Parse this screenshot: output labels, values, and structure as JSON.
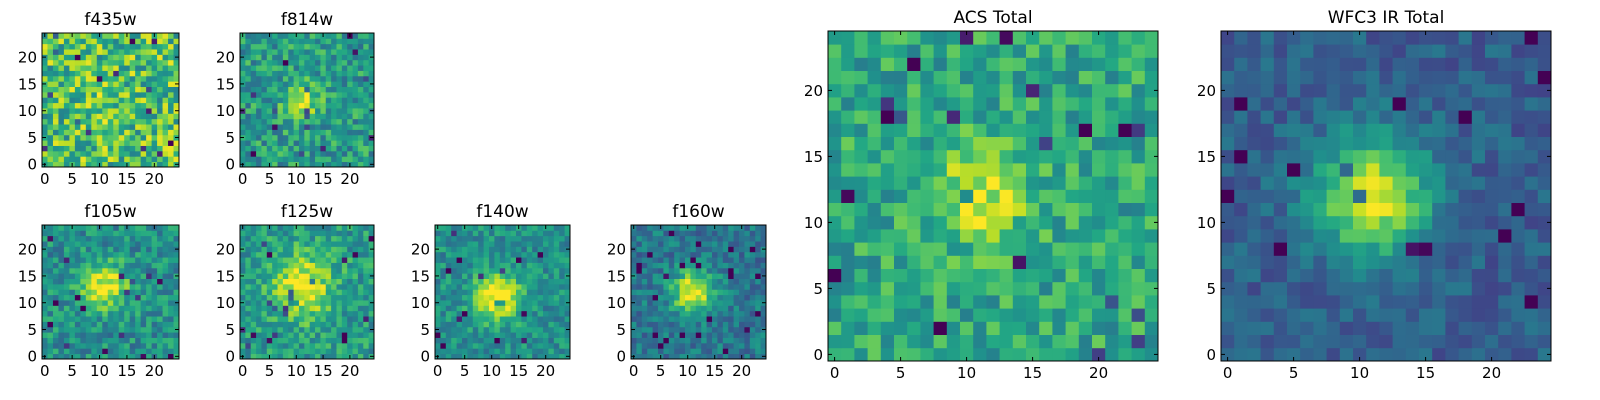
{
  "chart_data": [
    {
      "type": "heatmap",
      "title": "f435w",
      "xticks": [
        "0",
        "5",
        "10",
        "15",
        "20"
      ],
      "yticks": [
        "0",
        "5",
        "10",
        "15",
        "20"
      ],
      "grid_size": [
        25,
        25
      ],
      "xlim": [
        -0.5,
        24.5
      ],
      "ylim": [
        -0.5,
        24.5
      ],
      "colormap": "viridis",
      "peak": [
        10,
        12
      ],
      "peak_strength": 0.05,
      "peak_width": 3,
      "noise": 0.55,
      "base": 0.7,
      "grid": false
    },
    {
      "type": "heatmap",
      "title": "f814w",
      "xticks": [
        "0",
        "5",
        "10",
        "15",
        "20"
      ],
      "yticks": [
        "0",
        "5",
        "10",
        "15",
        "20"
      ],
      "grid_size": [
        25,
        25
      ],
      "xlim": [
        -0.5,
        24.5
      ],
      "ylim": [
        -0.5,
        24.5
      ],
      "colormap": "viridis",
      "peak": [
        11,
        12
      ],
      "peak_strength": 0.4,
      "peak_width": 2.2,
      "noise": 0.4,
      "base": 0.55,
      "grid": false
    },
    {
      "type": "heatmap",
      "title": "f105w",
      "xticks": [
        "0",
        "5",
        "10",
        "15",
        "20"
      ],
      "yticks": [
        "0",
        "5",
        "10",
        "15",
        "20"
      ],
      "grid_size": [
        25,
        25
      ],
      "xlim": [
        -0.5,
        24.5
      ],
      "ylim": [
        -0.5,
        24.5
      ],
      "colormap": "viridis",
      "peak": [
        11,
        13
      ],
      "peak_strength": 0.5,
      "peak_width": 3,
      "noise": 0.35,
      "base": 0.5,
      "grid": false
    },
    {
      "type": "heatmap",
      "title": "f125w",
      "xticks": [
        "0",
        "5",
        "10",
        "15",
        "20"
      ],
      "yticks": [
        "0",
        "5",
        "10",
        "15",
        "20"
      ],
      "grid_size": [
        25,
        25
      ],
      "xlim": [
        -0.5,
        24.5
      ],
      "ylim": [
        -0.5,
        24.5
      ],
      "colormap": "viridis",
      "peak": [
        11,
        13
      ],
      "peak_strength": 0.45,
      "peak_width": 4,
      "noise": 0.35,
      "base": 0.55,
      "grid": false
    },
    {
      "type": "heatmap",
      "title": "f140w",
      "xticks": [
        "0",
        "5",
        "10",
        "15",
        "20"
      ],
      "yticks": [
        "0",
        "5",
        "10",
        "15",
        "20"
      ],
      "grid_size": [
        25,
        25
      ],
      "xlim": [
        -0.5,
        24.5
      ],
      "ylim": [
        -0.5,
        24.5
      ],
      "colormap": "viridis",
      "peak": [
        11,
        11
      ],
      "peak_strength": 0.55,
      "peak_width": 3,
      "noise": 0.3,
      "base": 0.5,
      "grid": false
    },
    {
      "type": "heatmap",
      "title": "f160w",
      "xticks": [
        "0",
        "5",
        "10",
        "15",
        "20"
      ],
      "yticks": [
        "0",
        "5",
        "10",
        "15",
        "20"
      ],
      "grid_size": [
        25,
        25
      ],
      "xlim": [
        -0.5,
        24.5
      ],
      "ylim": [
        -0.5,
        24.5
      ],
      "colormap": "viridis",
      "peak": [
        11,
        12
      ],
      "peak_strength": 0.6,
      "peak_width": 2.8,
      "noise": 0.3,
      "base": 0.4,
      "grid": false
    },
    {
      "type": "heatmap",
      "title": "ACS Total",
      "xticks": [
        "0",
        "5",
        "10",
        "15",
        "20"
      ],
      "yticks": [
        "0",
        "5",
        "10",
        "15",
        "20"
      ],
      "grid_size": [
        25,
        25
      ],
      "xlim": [
        -0.5,
        24.5
      ],
      "ylim": [
        -0.5,
        24.5
      ],
      "colormap": "viridis",
      "peak": [
        11,
        12
      ],
      "peak_strength": 0.35,
      "peak_width": 2.5,
      "noise": 0.35,
      "base": 0.6,
      "grid": false
    },
    {
      "type": "heatmap",
      "title": "WFC3 IR Total",
      "xticks": [
        "0",
        "5",
        "10",
        "15",
        "20"
      ],
      "yticks": [
        "0",
        "5",
        "10",
        "15",
        "20"
      ],
      "grid_size": [
        25,
        25
      ],
      "xlim": [
        -0.5,
        24.5
      ],
      "ylim": [
        -0.5,
        24.5
      ],
      "colormap": "viridis",
      "peak": [
        11,
        12
      ],
      "peak_strength": 0.65,
      "peak_width": 3.2,
      "noise": 0.2,
      "base": 0.3,
      "grid": false
    }
  ]
}
